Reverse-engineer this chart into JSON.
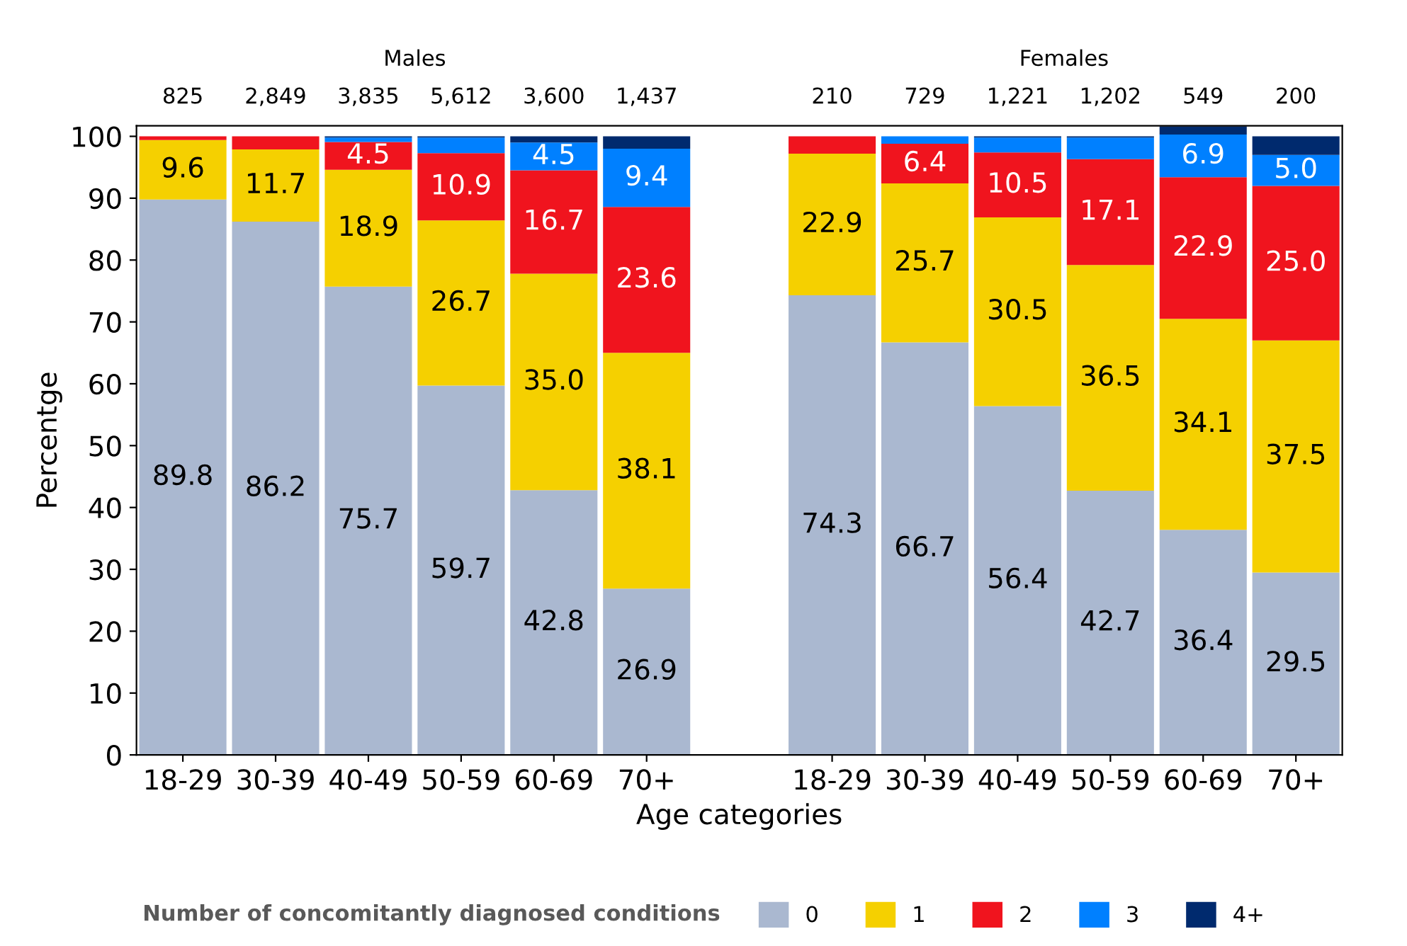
{
  "chart_data": {
    "type": "bar",
    "stacked": true,
    "xlabel": "Age categories",
    "ylabel": "Percentge",
    "legend_title": "Number of concomitantly diagnosed conditions",
    "legend": "bottom",
    "categories": [
      "18-29",
      "30-39",
      "40-49",
      "50-59",
      "60-69",
      "70+",
      null,
      "18-29",
      "30-39",
      "40-49",
      "50-59",
      "60-69",
      "70+"
    ],
    "ylim": [
      0,
      101.7
    ],
    "yticks": [
      0,
      10,
      20,
      30,
      40,
      50,
      60,
      70,
      80,
      90,
      100
    ],
    "grid": false,
    "annotations": [
      "Males",
      "Females",
      "825",
      "2,849",
      "3,835",
      "5,612",
      "3,600",
      "1,437",
      "210",
      "729",
      "1,221",
      "1,202",
      "549",
      "200"
    ],
    "series": [
      {
        "name": "0",
        "color": "#aab8d0",
        "values": [
          89.8,
          86.2,
          75.7,
          59.7,
          42.8,
          26.9,
          null,
          74.3,
          66.7,
          56.4,
          42.7,
          36.4,
          29.5
        ],
        "value_labels": [
          "89.8",
          "86.2",
          "75.7",
          "59.7",
          "42.8",
          "26.9",
          null,
          "74.3",
          "66.7",
          "56.4",
          "42.7",
          "36.4",
          "29.5"
        ]
      },
      {
        "name": "1",
        "color": "#f5d000",
        "values": [
          9.6,
          11.7,
          18.9,
          26.7,
          35.0,
          38.1,
          null,
          22.9,
          25.7,
          30.5,
          36.5,
          34.1,
          37.5
        ],
        "value_labels": [
          "9.6",
          "11.7",
          "18.9",
          "26.7",
          "35.0",
          "38.1",
          null,
          "22.9",
          "25.7",
          "30.5",
          "36.5",
          "34.1",
          "37.5"
        ]
      },
      {
        "name": "2",
        "color": "#f0141e",
        "values": [
          0.6,
          2.1,
          4.5,
          10.9,
          16.7,
          23.6,
          null,
          2.8,
          6.4,
          10.5,
          17.1,
          22.9,
          25.0
        ],
        "value_labels": [
          null,
          null,
          "4.5",
          "10.9",
          "16.7",
          "23.6",
          null,
          null,
          "6.4",
          "10.5",
          "17.1",
          "22.9",
          "25.0"
        ]
      },
      {
        "name": "3",
        "color": "#0080ff",
        "values": [
          0,
          0,
          0.7,
          2.5,
          4.5,
          9.4,
          null,
          0,
          1.2,
          2.4,
          3.5,
          6.9,
          5.0
        ],
        "value_labels": [
          null,
          null,
          null,
          null,
          "4.5",
          "9.4",
          null,
          null,
          null,
          null,
          null,
          "6.9",
          "5.0"
        ]
      },
      {
        "name": "4+",
        "color": "#002a6e",
        "values": [
          0,
          0,
          0.2,
          0.2,
          1.0,
          2.0,
          null,
          0,
          0,
          0.2,
          0.2,
          1.3,
          3.0
        ],
        "value_labels": [
          null,
          null,
          null,
          null,
          null,
          null,
          null,
          null,
          null,
          null,
          null,
          null,
          null
        ]
      }
    ]
  }
}
